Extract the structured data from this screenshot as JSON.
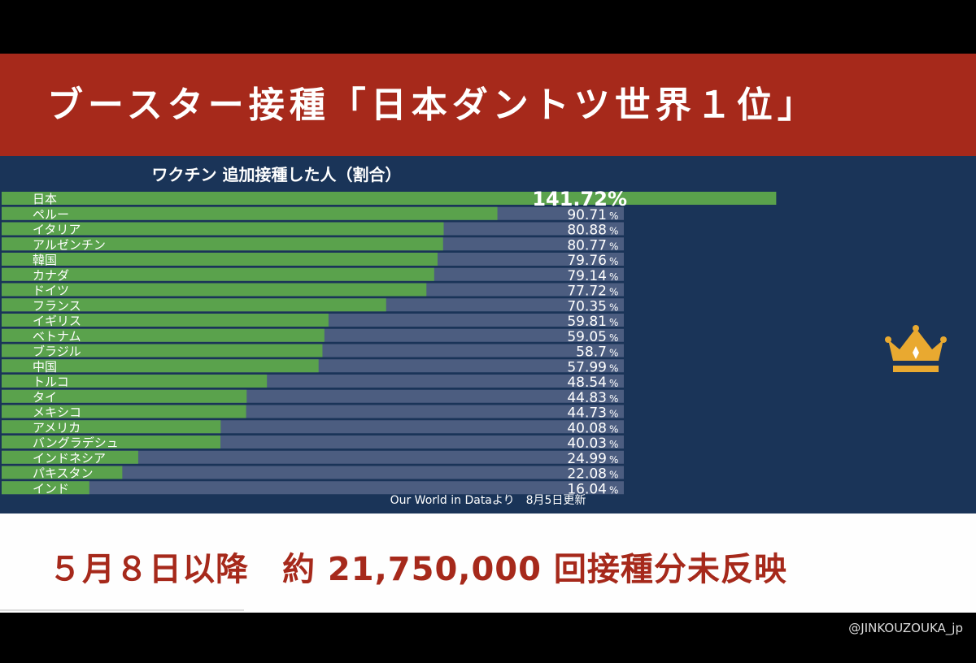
{
  "header": {
    "title": "ブースター接種「日本ダントツ世界１位」"
  },
  "footer": {
    "note": "５月８日以降　約 21,750,000 回接種分未反映"
  },
  "watermark": "@JINKOUZOUKA_jp",
  "chart_data": {
    "type": "bar",
    "orientation": "horizontal",
    "title": "ワクチン 追加接種した人（割合）",
    "source": "Our World in Dataより　8月5日更新",
    "unit": "%",
    "crown_icon": "crown-icon",
    "categories": [
      "日本",
      "ペルー",
      "イタリア",
      "アルゼンチン",
      "韓国",
      "カナダ",
      "ドイツ",
      "フランス",
      "イギリス",
      "ベトナム",
      "ブラジル",
      "中国",
      "トルコ",
      "タイ",
      "メキシコ",
      "アメリカ",
      "バングラデシュ",
      "インドネシア",
      "パキスタン",
      "インド"
    ],
    "values": [
      141.72,
      90.71,
      80.88,
      80.77,
      79.76,
      79.14,
      77.72,
      70.35,
      59.81,
      59.05,
      58.7,
      57.99,
      48.54,
      44.83,
      44.73,
      40.08,
      40.03,
      24.99,
      22.08,
      16.04
    ],
    "labels": [
      "141.72%",
      "90.71",
      "80.88",
      "80.77",
      "79.76",
      "79.14",
      "77.72",
      "70.35",
      "59.81",
      "59.05",
      "58.7",
      "57.99",
      "48.54",
      "44.83",
      "44.73",
      "40.08",
      "40.03",
      "24.99",
      "22.08",
      "16.04"
    ],
    "percent_sign": "%",
    "colors": {
      "bar": "#5aa24c",
      "track": "#4c5d80",
      "panel": "#1a3458",
      "text": "#ffffff",
      "crown": "#e9a930"
    }
  }
}
